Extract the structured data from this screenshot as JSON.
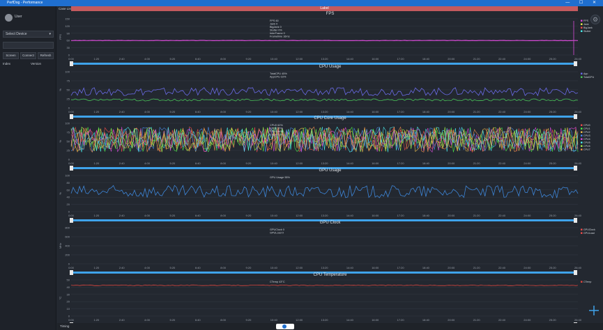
{
  "window": {
    "title": "PerfDog - Performance",
    "controls": "— ☐ ✕"
  },
  "sidebar": {
    "username": "User",
    "dropdown_value": "Select Device",
    "buttons": [
      "Screen",
      "Connect",
      "Refresh"
    ],
    "list_headers": [
      "Index",
      "Version"
    ]
  },
  "main": {
    "top_label": "Case List",
    "top_bar_label": "Label",
    "bottom_label": "Timing",
    "tick_labels": [
      "0:00",
      "1:20",
      "2:40",
      "4:00",
      "5:20",
      "6:40",
      "8:00",
      "9:20",
      "10:40",
      "12:00",
      "13:20",
      "14:40",
      "16:00",
      "17:20",
      "18:40",
      "20:00",
      "21:20",
      "22:40",
      "24:00",
      "25:20",
      "26:40"
    ],
    "panels": [
      {
        "title": "FPS",
        "ylabel": "FPS",
        "yticks": [
          "150",
          "120",
          "90",
          "60",
          "30",
          "0"
        ],
        "legend": [
          "FPS",
          "Jank",
          "BigJank",
          "Stutter"
        ],
        "legend_colors": [
          "#d64ad6",
          "#e6e64a",
          "#e64a4a",
          "#4ae6e6"
        ],
        "hover_lines": [
          "FPS 60",
          "Jank 0",
          "BigJank 0",
          "Stutter 0%",
          "InterFrame 0",
          "Frametime 16ms"
        ]
      },
      {
        "title": "CPU Usage",
        "ylabel": "%",
        "yticks": [
          "100",
          "75",
          "50",
          "25",
          "0"
        ],
        "legend": [
          "App",
          "TotalCPU"
        ],
        "legend_colors": [
          "#6a6ae6",
          "#4ac45a"
        ],
        "hover_lines": [
          "TotalCPU 45%",
          "AppCPU 22%"
        ]
      },
      {
        "title": "CPU Core Usage",
        "ylabel": "%",
        "yticks": [
          "100",
          "75",
          "50",
          "25",
          "0"
        ],
        "legend": [
          "CPU0",
          "CPU1",
          "CPU2",
          "CPU3",
          "CPU4",
          "CPU5",
          "CPU6",
          "CPU7"
        ],
        "legend_colors": [
          "#e64a4a",
          "#4ae64a",
          "#e6b84a",
          "#4a8ae6",
          "#d64ad6",
          "#4ae6e6",
          "#a0e64a",
          "#e68a4a"
        ],
        "hover_lines": [
          "CPU0 62%",
          "CPU1 55%",
          "CPU2 48%",
          "CPU3 51%"
        ]
      },
      {
        "title": "GPU Usage",
        "ylabel": "%",
        "yticks": [
          "100",
          "80",
          "60",
          "40",
          "20",
          "0"
        ],
        "legend": [],
        "legend_colors": [
          "#3e86d8"
        ],
        "hover_lines": [
          "GPU Usage 55%"
        ]
      },
      {
        "title": "GPU Clock",
        "ylabel": "MHz",
        "yticks": [
          "800",
          "600",
          "400",
          "200",
          "0"
        ],
        "legend": [
          "GPUClock",
          "GPULoad"
        ],
        "legend_colors": [
          "#e64a4a",
          "#e64a4a"
        ],
        "hover_lines": [
          "GPUClock 0",
          "GPULoad 0"
        ]
      },
      {
        "title": "CPU Temperature",
        "ylabel": "°C",
        "yticks": [
          "50",
          "40",
          "30",
          "20",
          "10",
          "0"
        ],
        "legend": [
          "CTemp"
        ],
        "legend_colors": [
          "#d8453e"
        ],
        "hover_lines": [
          "CTemp 43°C"
        ]
      }
    ]
  }
}
